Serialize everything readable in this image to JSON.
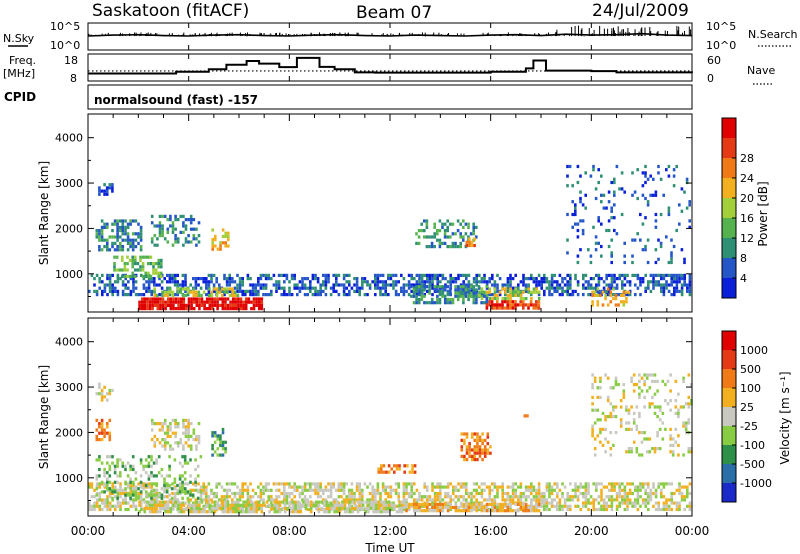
{
  "header": {
    "station": "Saskatoon (fitACF)",
    "beam": "Beam 07",
    "date": "24/Jul/2009"
  },
  "panels": {
    "nsky": {
      "label": "N.Sky",
      "ticks": [
        "10^5",
        "10^0"
      ],
      "right_label": "N.Search",
      "right_ticks": [
        "10^5",
        "10^0"
      ]
    },
    "freq": {
      "label": "Freq.",
      "unit": "[MHz]",
      "ticks": [
        "18",
        "8"
      ],
      "right_label": "Nave",
      "right_ticks": [
        "60",
        "0"
      ]
    },
    "cpid": {
      "label": "CPID",
      "value": "normalsound (fast) -157"
    }
  },
  "chart_data": [
    {
      "type": "line",
      "name": "N.Sky / N.Search",
      "x": [
        0,
        1,
        2,
        3,
        4,
        5,
        6,
        7,
        8,
        9,
        10,
        11,
        12,
        13,
        14,
        15,
        16,
        17,
        18,
        19,
        20,
        21,
        22,
        23,
        24
      ],
      "series": [
        {
          "name": "N.Sky",
          "values": [
            2.6,
            2.8,
            2.9,
            2.7,
            2.6,
            2.8,
            2.9,
            2.7,
            2.6,
            2.8,
            2.9,
            2.7,
            2.6,
            2.8,
            2.7,
            2.6,
            2.8,
            2.9,
            2.7,
            3.0,
            2.8,
            2.9,
            3.1,
            2.8,
            2.7
          ]
        }
      ],
      "xlim": [
        0,
        24
      ],
      "ylim": [
        0,
        5
      ]
    },
    {
      "type": "line",
      "name": "Frequency / Nave",
      "x": [
        0,
        1.0,
        3.5,
        4.8,
        5.5,
        6.3,
        6.8,
        7.6,
        8.3,
        9.2,
        9.8,
        10.6,
        11.4,
        16.0,
        17.4,
        17.7,
        18.2,
        20.0,
        21.0,
        24
      ],
      "series": [
        {
          "name": "Freq",
          "values": [
            10.5,
            10.5,
            11.3,
            12.4,
            14.5,
            16.2,
            15.0,
            13.4,
            17.6,
            13.5,
            12.4,
            11.0,
            10.9,
            11.3,
            12.8,
            16.4,
            11.8,
            11.6,
            11.0,
            10.8
          ]
        }
      ],
      "nave_level": 22,
      "xlim": [
        0,
        24
      ],
      "ylim": [
        8,
        18
      ]
    },
    {
      "type": "heatmap",
      "name": "power",
      "ylabel": "Slant Range [km]",
      "xlim": [
        0,
        24
      ],
      "ylim": [
        180,
        4500
      ],
      "yticks": [
        1000,
        2000,
        3000,
        4000
      ],
      "colorbar": {
        "label": "Power [dB]",
        "ticks": [
          "4",
          "8",
          "12",
          "16",
          "20",
          "24",
          "28"
        ],
        "colors": [
          "#0a1fd8",
          "#2456c8",
          "#2e8f74",
          "#56b24e",
          "#a2cf3a",
          "#f2b020",
          "#f07a18",
          "#e43a16",
          "#e00000"
        ]
      },
      "regions": [
        {
          "t0": 0.0,
          "t1": 24.0,
          "r0": 500,
          "r1": 1000,
          "level": 1,
          "density": 0.55
        },
        {
          "t0": 0.3,
          "t1": 2.2,
          "r0": 1500,
          "r1": 2200,
          "level": 2,
          "density": 0.55
        },
        {
          "t0": 1.0,
          "t1": 3.0,
          "r0": 900,
          "r1": 1400,
          "level": 3,
          "density": 0.5
        },
        {
          "t0": 2.0,
          "t1": 7.0,
          "r0": 230,
          "r1": 480,
          "level": 8,
          "density": 0.85
        },
        {
          "t0": 2.6,
          "t1": 6.0,
          "r0": 480,
          "r1": 700,
          "level": 4,
          "density": 0.6
        },
        {
          "t0": 2.5,
          "t1": 4.5,
          "r0": 1600,
          "r1": 2300,
          "level": 2,
          "density": 0.4
        },
        {
          "t0": 4.8,
          "t1": 5.6,
          "r0": 1500,
          "r1": 2000,
          "level": 5,
          "density": 0.45
        },
        {
          "t0": 13.0,
          "t1": 15.5,
          "r0": 1600,
          "r1": 2200,
          "level": 2,
          "density": 0.45
        },
        {
          "t0": 15.0,
          "t1": 15.4,
          "r0": 1600,
          "r1": 1800,
          "level": 6,
          "density": 0.7
        },
        {
          "t0": 12.8,
          "t1": 16.0,
          "r0": 300,
          "r1": 750,
          "level": 2,
          "density": 0.55
        },
        {
          "t0": 15.8,
          "t1": 18.0,
          "r0": 230,
          "r1": 420,
          "level": 7,
          "density": 0.8
        },
        {
          "t0": 15.5,
          "t1": 18.0,
          "r0": 420,
          "r1": 700,
          "level": 4,
          "density": 0.55
        },
        {
          "t0": 20.0,
          "t1": 21.5,
          "r0": 300,
          "r1": 700,
          "level": 5,
          "density": 0.45
        },
        {
          "t0": 19.0,
          "t1": 24.0,
          "r0": 1200,
          "r1": 3400,
          "level": 1,
          "density": 0.12
        },
        {
          "t0": 0.4,
          "t1": 1.0,
          "r0": 2700,
          "r1": 3000,
          "level": 1,
          "density": 0.4
        }
      ]
    },
    {
      "type": "heatmap",
      "name": "velocity",
      "ylabel": "Slant Range [km]",
      "xlim": [
        0,
        24
      ],
      "ylim": [
        180,
        4500
      ],
      "yticks": [
        1000,
        2000,
        3000,
        4000
      ],
      "colorbar": {
        "label": "Velocity [m s⁻¹]",
        "ticks": [
          "1000",
          "500",
          "100",
          "25",
          "-25",
          "-100",
          "-500",
          "-1000"
        ],
        "colors": [
          "#1a2ac8",
          "#2a6ea8",
          "#2e8f48",
          "#88cc44",
          "#c8c8c0",
          "#f2b020",
          "#f07a18",
          "#e43a16",
          "#e00000"
        ]
      },
      "regions": [
        {
          "t0": 0.0,
          "t1": 24.0,
          "r0": 250,
          "r1": 900,
          "level": 4,
          "density": 0.6
        },
        {
          "t0": 2.0,
          "t1": 12.5,
          "r0": 230,
          "r1": 500,
          "level": 4,
          "density": 0.7
        },
        {
          "t0": 0.3,
          "t1": 4.5,
          "r0": 500,
          "r1": 1500,
          "level": 3,
          "density": 0.35
        },
        {
          "t0": 0.3,
          "t1": 0.9,
          "r0": 1800,
          "r1": 2300,
          "level": 6,
          "density": 0.55
        },
        {
          "t0": 2.5,
          "t1": 4.5,
          "r0": 1600,
          "r1": 2300,
          "level": 4,
          "density": 0.4
        },
        {
          "t0": 4.9,
          "t1": 5.5,
          "r0": 1500,
          "r1": 2100,
          "level": 2,
          "density": 0.45
        },
        {
          "t0": 12.5,
          "t1": 18.0,
          "r0": 230,
          "r1": 450,
          "level": 5,
          "density": 0.75
        },
        {
          "t0": 14.8,
          "t1": 16.0,
          "r0": 1400,
          "r1": 2000,
          "level": 6,
          "density": 0.6
        },
        {
          "t0": 11.5,
          "t1": 13.0,
          "r0": 1100,
          "r1": 1300,
          "level": 6,
          "density": 0.6
        },
        {
          "t0": 17.2,
          "t1": 17.7,
          "r0": 2300,
          "r1": 2400,
          "level": 7,
          "density": 0.7
        },
        {
          "t0": 20.0,
          "t1": 24.0,
          "r0": 1500,
          "r1": 3300,
          "level": 4,
          "density": 0.2
        },
        {
          "t0": 0.3,
          "t1": 1.0,
          "r0": 2700,
          "r1": 3100,
          "level": 4,
          "density": 0.4
        }
      ]
    }
  ],
  "time_axis": {
    "label": "Time UT",
    "ticks": [
      "00:00",
      "04:00",
      "08:00",
      "12:00",
      "16:00",
      "20:00",
      "00:00"
    ]
  }
}
